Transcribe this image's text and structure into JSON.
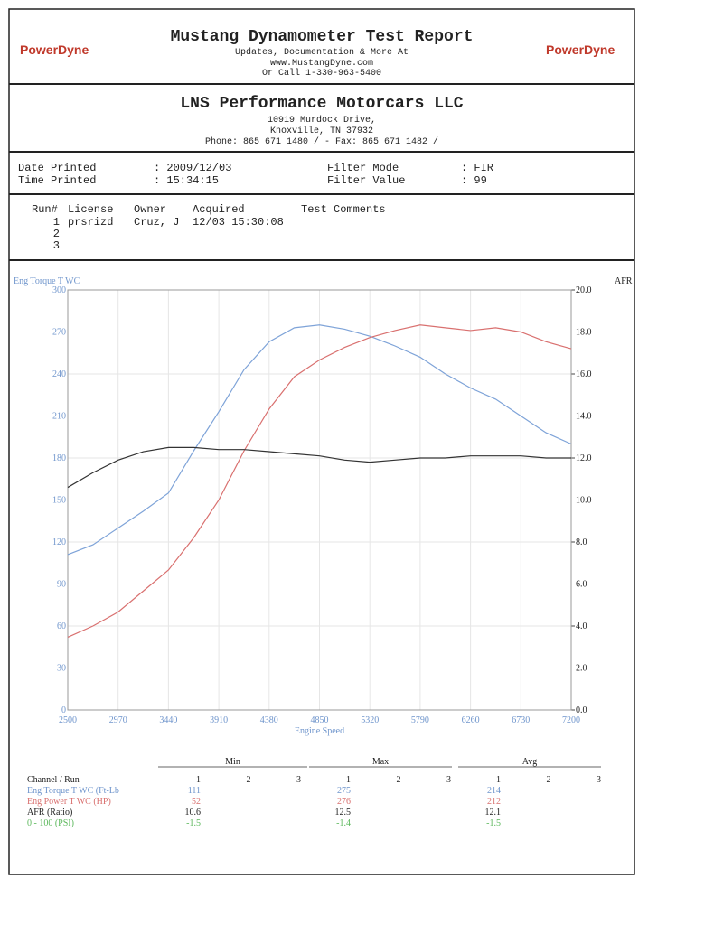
{
  "header": {
    "logo": "PowerDyne",
    "title": "Mustang Dynamometer Test Report",
    "lines": [
      "Updates, Documentation & More At",
      "www.MustangDyne.com",
      "Or Call 1-330-963-5400"
    ]
  },
  "shop": {
    "name": "LNS Performance Motorcars LLC",
    "lines": [
      "10919 Murdock Drive,",
      "Knoxville, TN  37932",
      "Phone: 865 671 1480 /  - Fax: 865 671 1482 /"
    ]
  },
  "settings": {
    "date_label": "Date Printed",
    "date": ": 2009/12/03",
    "time_label": "Time Printed",
    "time": ": 15:34:15",
    "filter_mode_label": "Filter Mode",
    "filter_mode": ": FIR",
    "filter_value_label": "Filter Value",
    "filter_value": ": 99"
  },
  "runs": {
    "columns": [
      "Run#",
      "License",
      "Owner",
      "Acquired",
      "Test Comments"
    ],
    "rows": [
      [
        "1",
        "prsrizd",
        "Cruz, J",
        "12/03 15:30:08"
      ],
      [
        "2"
      ],
      [
        "3"
      ]
    ]
  },
  "chart_data": {
    "type": "line",
    "y_label": "Eng Torque T WC",
    "y2_label": "AFR",
    "x_label": "Engine Speed",
    "x": [
      2500,
      2735,
      2970,
      3205,
      3440,
      3675,
      3910,
      4145,
      4380,
      4615,
      4850,
      5085,
      5320,
      5555,
      5790,
      6025,
      6260,
      6495,
      6730,
      6965,
      7200
    ],
    "xlim": [
      2500,
      7200
    ],
    "xticks": [
      2500,
      2970,
      3440,
      3910,
      4380,
      4850,
      5320,
      5790,
      6260,
      6730,
      7200
    ],
    "ylim": [
      0,
      300
    ],
    "yticks": [
      0,
      30,
      60,
      90,
      120,
      150,
      180,
      210,
      240,
      270,
      300
    ],
    "y2lim": [
      0,
      20
    ],
    "y2ticks": [
      {
        "value": 0,
        "label": "0.0"
      },
      {
        "value": 2,
        "label": "2.0"
      },
      {
        "value": 4,
        "label": "4.0"
      },
      {
        "value": 6,
        "label": "6.0"
      },
      {
        "value": 8,
        "label": "8.0"
      },
      {
        "value": 10,
        "label": "10.0"
      },
      {
        "value": 12,
        "label": "12.0"
      },
      {
        "value": 14,
        "label": "14.0"
      },
      {
        "value": 16,
        "label": "16.0"
      },
      {
        "value": 18,
        "label": "18.0"
      },
      {
        "value": 20,
        "label": "20.0"
      }
    ],
    "grid": true,
    "series": [
      {
        "color": "#7ea3d8",
        "values": [
          111,
          118,
          130,
          142,
          155,
          185,
          213,
          243,
          263,
          273,
          275,
          272,
          267,
          260,
          252,
          240,
          230,
          222,
          210,
          198,
          190
        ]
      },
      {
        "color": "#d9706f",
        "values": [
          52,
          60,
          70,
          85,
          100,
          123,
          150,
          185,
          215,
          238,
          250,
          259,
          266,
          271,
          275,
          273,
          271,
          273,
          270,
          263,
          258
        ]
      },
      {
        "color": "#333333",
        "axis": "y2",
        "values": [
          10.6,
          11.3,
          11.9,
          12.3,
          12.5,
          12.5,
          12.4,
          12.4,
          12.3,
          12.2,
          12.1,
          11.9,
          11.8,
          11.9,
          12.0,
          12.0,
          12.1,
          12.1,
          12.1,
          12.0,
          12.0
        ]
      }
    ]
  },
  "summary": {
    "groups": [
      "Min",
      "Max",
      "Avg"
    ],
    "header": "Channel / Run",
    "runs": [
      "1",
      "2",
      "3"
    ],
    "rows": [
      {
        "channel": "Eng Torque T WC (Ft-Lb",
        "color": "#6f95cc",
        "values": [
          "111",
          "275",
          "214"
        ]
      },
      {
        "channel": "Eng Power T WC (HP)",
        "color": "#d9706f",
        "values": [
          "52",
          "276",
          "212"
        ]
      },
      {
        "channel": "AFR (Ratio)",
        "color": "#222222",
        "values": [
          "10.6",
          "12.5",
          "12.1"
        ]
      },
      {
        "channel": "0 - 100 (PSI)",
        "color": "#5cb85c",
        "values": [
          "-1.5",
          "-1.4",
          "-1.5"
        ]
      }
    ]
  }
}
